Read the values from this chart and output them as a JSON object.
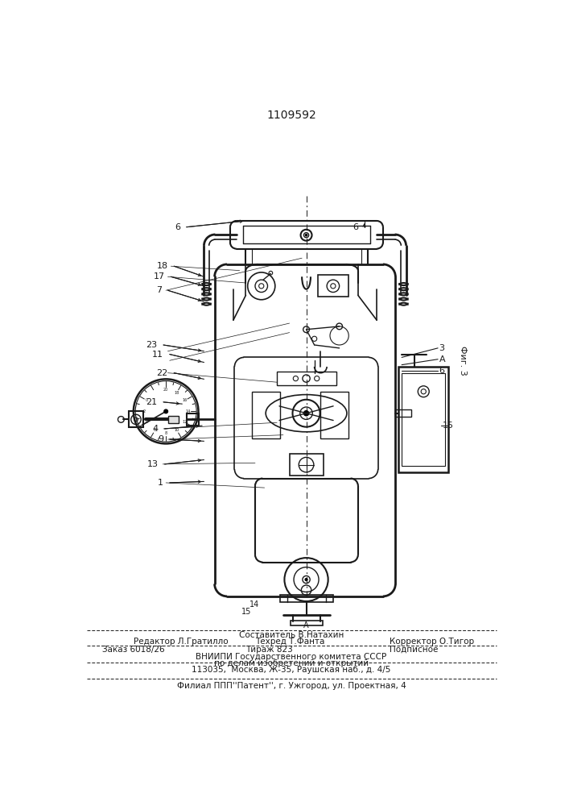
{
  "patent_number": "1109592",
  "fig_label": "Фиг. 3",
  "background_color": "#ffffff",
  "line_color": "#1a1a1a",
  "footer_sestavitel": "Составитель В.Натахин",
  "footer_redaktor": "Редактор Л.Гратилло",
  "footer_tehred": "Техред Т.Фанта",
  "footer_korrektor": "Корректор О.Тигор",
  "footer_zakaz": "Заказ 6018/26",
  "footer_tirazh": "Тираж 823",
  "footer_podpisnoe": "Подписное",
  "footer_vniip1": "ВНИИПИ Государственного комитета СССР",
  "footer_vniip2": "по делам изобретений и открытий",
  "footer_vniip3": "113035,  Москва, Ж-35, Раушская наб., д. 4/5",
  "footer_filial": "Филиал ППП''Патент'', г. Ужгород, ул. Проектная, 4"
}
